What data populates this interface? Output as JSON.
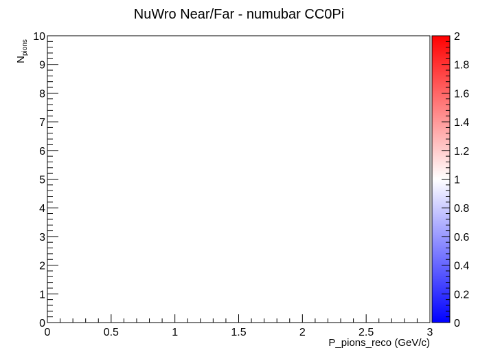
{
  "chart_data": {
    "type": "heatmap",
    "title": "NuWro Near/Far - numubar CC0Pi",
    "xlabel": "P_pions_reco (GeV/c)",
    "ylabel_main": "N",
    "ylabel_sub": "pions",
    "xlim": [
      0,
      3
    ],
    "ylim": [
      0,
      10
    ],
    "x_ticks": [
      0,
      0.5,
      1,
      1.5,
      2,
      2.5,
      3
    ],
    "x_tick_labels": [
      "0",
      "0.5",
      "1",
      "1.5",
      "2",
      "2.5",
      "3"
    ],
    "y_ticks": [
      0,
      1,
      2,
      3,
      4,
      5,
      6,
      7,
      8,
      9,
      10
    ],
    "y_tick_labels": [
      "0",
      "1",
      "2",
      "3",
      "4",
      "5",
      "6",
      "7",
      "8",
      "9",
      "10"
    ],
    "zlim": [
      0,
      2
    ],
    "z_ticks": [
      0,
      0.2,
      0.4,
      0.6,
      0.8,
      1,
      1.2,
      1.4,
      1.6,
      1.8,
      2
    ],
    "z_tick_labels": [
      "0",
      "0.2",
      "0.4",
      "0.6",
      "0.8",
      "1",
      "1.2",
      "1.4",
      "1.6",
      "1.8",
      "2"
    ],
    "colorscale": [
      "#0000ff",
      "#ffffff",
      "#ff0000"
    ],
    "cells": []
  }
}
